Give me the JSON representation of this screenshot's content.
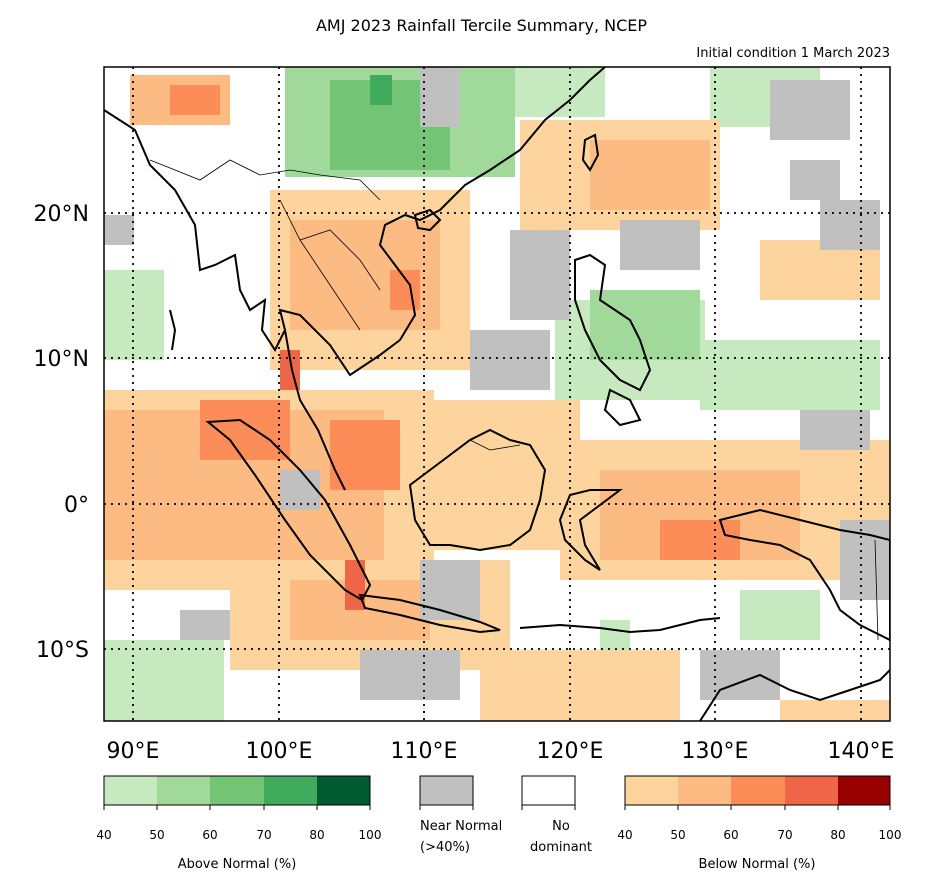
{
  "title": "AMJ 2023 Rainfall Tercile Summary, NCEP",
  "subtitle": "Initial condition 1 March 2023",
  "axes": {
    "lon_ticks": [
      "90°E",
      "100°E",
      "110°E",
      "120°E",
      "130°E",
      "140°E"
    ],
    "lat_ticks": [
      "20°N",
      "10°N",
      "0°",
      "10°S"
    ],
    "lon_values": [
      90,
      100,
      110,
      120,
      130,
      140
    ],
    "lat_values": [
      20,
      10,
      0,
      -10
    ],
    "lon_range": [
      88,
      142
    ],
    "lat_range": [
      -15,
      30
    ],
    "gridlines": "dotted"
  },
  "legend": {
    "above": {
      "label": "Above Normal (%)",
      "ticks": [
        "40",
        "50",
        "60",
        "70",
        "80",
        "100"
      ],
      "colors": [
        "#c7e9c0",
        "#a1d99b",
        "#74c476",
        "#41ab5d",
        "#005a32"
      ]
    },
    "near": {
      "label_1": "Near Normal",
      "label_2": "(>40%)",
      "color": "#c0c0c0"
    },
    "none": {
      "label_1": "No",
      "label_2": "dominant",
      "color": "#ffffff"
    },
    "below": {
      "label": "Below Normal (%)",
      "ticks": [
        "40",
        "50",
        "60",
        "70",
        "80",
        "100"
      ],
      "colors": [
        "#fdd49e",
        "#fdbb84",
        "#fc8d59",
        "#ef6548",
        "#990000"
      ]
    }
  }
}
